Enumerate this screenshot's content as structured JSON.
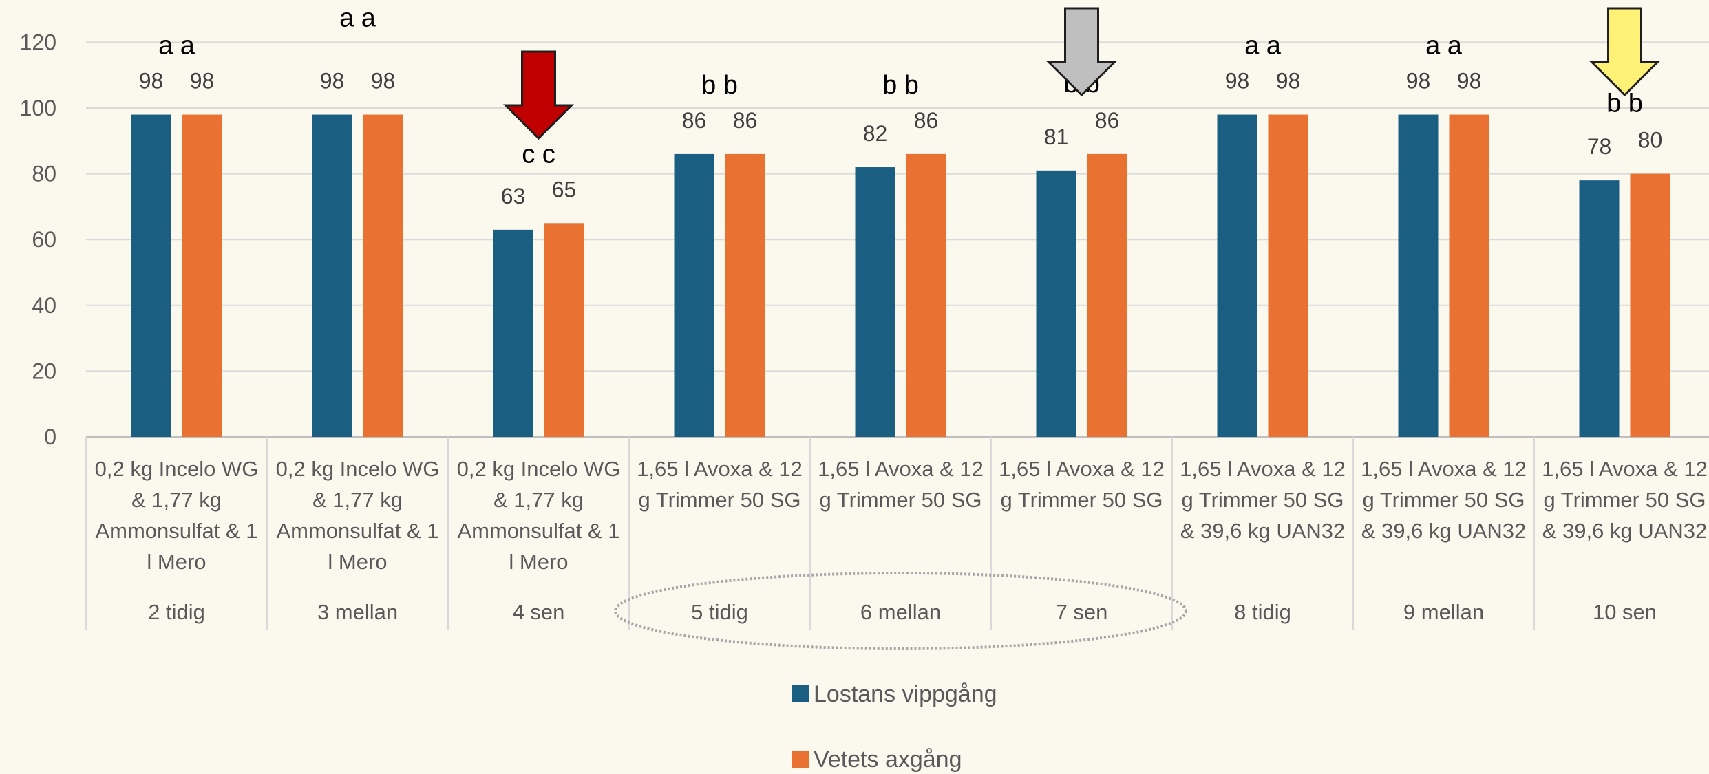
{
  "chart_data": {
    "type": "bar",
    "ylim": [
      0,
      120
    ],
    "yticks": [
      0,
      20,
      40,
      60,
      80,
      100,
      120
    ],
    "grid": true,
    "legend_position": "bottom",
    "categories": [
      {
        "treatment": [
          "0,2 kg Incelo WG",
          "& 1,77 kg",
          "Ammonsulfat & 1",
          "l Mero"
        ],
        "timing": "2 tidig"
      },
      {
        "treatment": [
          "0,2 kg Incelo WG",
          "& 1,77 kg",
          "Ammonsulfat & 1",
          "l Mero"
        ],
        "timing": "3 mellan"
      },
      {
        "treatment": [
          "0,2 kg Incelo WG",
          "& 1,77 kg",
          "Ammonsulfat & 1",
          "l Mero"
        ],
        "timing": "4 sen"
      },
      {
        "treatment": [
          "1,65 l Avoxa & 12",
          "g Trimmer 50 SG"
        ],
        "timing": "5 tidig"
      },
      {
        "treatment": [
          "1,65 l Avoxa & 12",
          "g Trimmer 50 SG"
        ],
        "timing": "6 mellan"
      },
      {
        "treatment": [
          "1,65 l Avoxa & 12",
          "g Trimmer 50 SG"
        ],
        "timing": "7 sen"
      },
      {
        "treatment": [
          "1,65 l Avoxa & 12",
          "g Trimmer 50 SG",
          "& 39,6 kg UAN32"
        ],
        "timing": "8 tidig"
      },
      {
        "treatment": [
          "1,65 l Avoxa & 12",
          "g Trimmer 50 SG",
          "& 39,6 kg UAN32"
        ],
        "timing": "9 mellan"
      },
      {
        "treatment": [
          "1,65 l Avoxa & 12",
          "g Trimmer 50 SG",
          "& 39,6 kg UAN32"
        ],
        "timing": "10 sen"
      }
    ],
    "series": [
      {
        "name": "Lostans vippgång",
        "color": "#1a5e82",
        "values": [
          98,
          98,
          63,
          86,
          82,
          81,
          98,
          98,
          78
        ]
      },
      {
        "name": "Vetets axgång",
        "color": "#e97132",
        "values": [
          98,
          98,
          65,
          86,
          86,
          86,
          98,
          98,
          80
        ]
      }
    ],
    "significance_letters": [
      "a a",
      "a a",
      "c c",
      "b b",
      "b b",
      "b b",
      "a a",
      "a a",
      "b b"
    ],
    "annotations": [
      {
        "type": "arrow-down",
        "category_index": 2,
        "color": "#c00000"
      },
      {
        "type": "arrow-down",
        "category_index": 5,
        "color": "#bfbfbf"
      },
      {
        "type": "arrow-down",
        "category_index": 8,
        "color": "#fff176"
      },
      {
        "type": "ellipse",
        "category_range": [
          3,
          5
        ],
        "color": "#a6a6a6"
      }
    ]
  }
}
